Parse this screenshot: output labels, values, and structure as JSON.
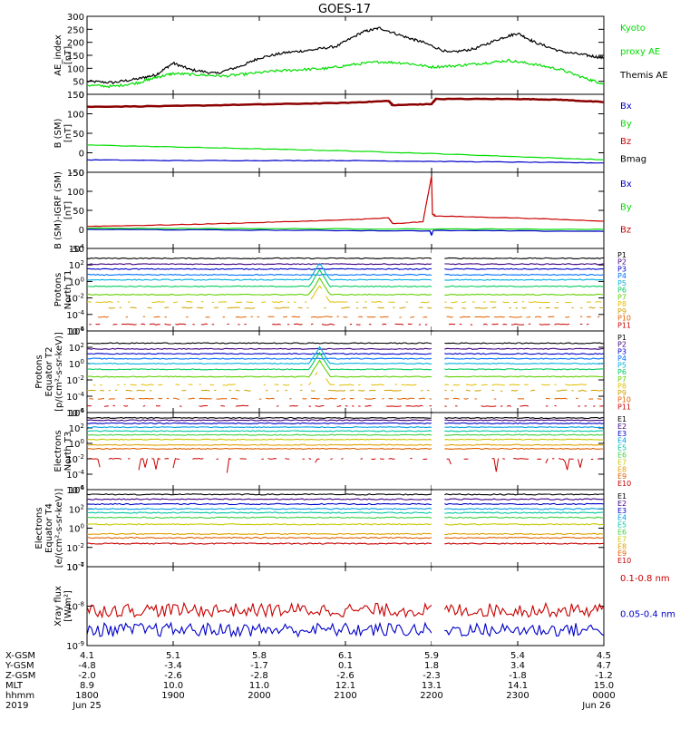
{
  "title": "GOES-17",
  "x_ticks": [
    "1800",
    "1900",
    "2000",
    "2100",
    "2200",
    "2300",
    "0000"
  ],
  "footer": {
    "rows": [
      {
        "label": "X-GSM",
        "values": [
          "4.1",
          "5.1",
          "5.8",
          "6.1",
          "5.9",
          "5.4",
          "4.5"
        ]
      },
      {
        "label": "Y-GSM",
        "values": [
          "-4.8",
          "-3.4",
          "-1.7",
          "0.1",
          "1.8",
          "3.4",
          "4.7"
        ]
      },
      {
        "label": "Z-GSM",
        "values": [
          "-2.0",
          "-2.6",
          "-2.8",
          "-2.6",
          "-2.3",
          "-1.8",
          "-1.2"
        ]
      },
      {
        "label": "MLT",
        "values": [
          "8.9",
          "10.0",
          "11.0",
          "12.1",
          "13.1",
          "14.1",
          "15.0"
        ]
      },
      {
        "label": "hhmm",
        "values": [
          "1800",
          "1900",
          "2000",
          "2100",
          "2200",
          "2300",
          "0000"
        ]
      }
    ],
    "year": "2019",
    "date_start": "Jun 25",
    "date_end": "Jun 26"
  },
  "colors": {
    "black": "#000000",
    "green": "#00dd00",
    "blue": "#0000c8",
    "red": "#c80000",
    "darkred": "#8b0000"
  },
  "chart_data": [
    {
      "type": "line",
      "ylabel": [
        "AE_index",
        "[nT]"
      ],
      "ylim": [
        0,
        300
      ],
      "yscale": "linear",
      "yticks": [
        "0",
        "50",
        "100",
        "150",
        "200",
        "250",
        "300"
      ],
      "legend": [
        {
          "label": "Kyoto",
          "color": "#00dd00"
        },
        {
          "label": "proxy AE",
          "color": "#00dd00"
        },
        {
          "label": "Themis AE",
          "color": "#000000"
        }
      ],
      "series": [
        {
          "color": "#000000",
          "x": [
            18.0,
            18.3,
            18.6,
            18.8,
            19.0,
            19.2,
            19.5,
            19.8,
            20.0,
            20.3,
            20.6,
            20.9,
            21.2,
            21.4,
            21.7,
            21.9,
            22.2,
            22.5,
            22.8,
            23.0,
            23.2,
            23.5,
            23.8,
            24.0
          ],
          "y": [
            50,
            45,
            60,
            75,
            120,
            95,
            80,
            110,
            140,
            160,
            170,
            185,
            240,
            255,
            220,
            200,
            160,
            175,
            215,
            235,
            200,
            165,
            150,
            140
          ]
        },
        {
          "color": "#00dd00",
          "x": [
            18.0,
            18.3,
            18.6,
            18.8,
            19.0,
            19.3,
            19.6,
            19.9,
            20.2,
            20.5,
            20.8,
            21.1,
            21.4,
            21.7,
            22.0,
            22.3,
            22.6,
            22.9,
            23.2,
            23.5,
            23.8,
            24.0
          ],
          "y": [
            35,
            30,
            45,
            65,
            80,
            75,
            70,
            80,
            90,
            95,
            100,
            115,
            125,
            120,
            105,
            110,
            120,
            130,
            115,
            95,
            60,
            40
          ]
        }
      ]
    },
    {
      "type": "line",
      "ylabel": [
        "B (SM)",
        "[nT]"
      ],
      "ylim": [
        -50,
        150
      ],
      "yscale": "linear",
      "yticks": [
        "-50",
        "0",
        "50",
        "100",
        "150"
      ],
      "legend": [
        {
          "label": "Bx",
          "color": "#0000c8"
        },
        {
          "label": "By",
          "color": "#00dd00"
        },
        {
          "label": "Bz",
          "color": "#c80000"
        },
        {
          "label": "Bmag",
          "color": "#000000"
        }
      ],
      "series": [
        {
          "color": "#8b0000",
          "x": [
            18.0,
            19.0,
            20.0,
            21.0,
            21.5,
            21.55,
            22.0,
            22.05,
            23.0,
            23.5,
            24.0
          ],
          "y": [
            118,
            120,
            124,
            128,
            133,
            122,
            125,
            138,
            138,
            136,
            130
          ]
        },
        {
          "color": "#00dd00",
          "x": [
            18.0,
            19.0,
            20.0,
            21.0,
            22.0,
            23.0,
            24.0
          ],
          "y": [
            20,
            15,
            10,
            5,
            -2,
            -10,
            -18
          ]
        },
        {
          "color": "#0000c8",
          "x": [
            18.0,
            19.0,
            20.0,
            21.0,
            22.0,
            23.0,
            24.0
          ],
          "y": [
            -18,
            -20,
            -20,
            -20,
            -22,
            -24,
            -26
          ]
        }
      ]
    },
    {
      "type": "line",
      "ylabel": [
        "B (SM)-IGRF (SM)",
        "[nT]"
      ],
      "ylim": [
        -50,
        150
      ],
      "yscale": "linear",
      "yticks": [
        "-50",
        "0",
        "50",
        "100",
        "150"
      ],
      "legend": [
        {
          "label": "Bx",
          "color": "#0000c8"
        },
        {
          "label": "By",
          "color": "#00dd00"
        },
        {
          "label": "Bz",
          "color": "#c80000"
        }
      ],
      "series": [
        {
          "color": "#c80000",
          "x": [
            18.0,
            19.0,
            20.0,
            21.0,
            21.5,
            21.55,
            21.9,
            22.0,
            22.01,
            22.05,
            23.0,
            24.0
          ],
          "y": [
            8,
            12,
            18,
            25,
            30,
            15,
            20,
            140,
            40,
            35,
            30,
            22
          ]
        },
        {
          "color": "#00dd00",
          "x": [
            18.0,
            20.0,
            22.0,
            24.0
          ],
          "y": [
            3,
            2,
            1,
            0
          ]
        },
        {
          "color": "#0000c8",
          "x": [
            18.0,
            20.0,
            21.98,
            22.0,
            22.02,
            24.0
          ],
          "y": [
            0,
            -2,
            -4,
            -15,
            -3,
            -5
          ]
        }
      ]
    },
    {
      "type": "line",
      "ylabel": [
        "Protons",
        "North T1"
      ],
      "ylim": [
        -6,
        4
      ],
      "yscale": "log",
      "yticks": [
        "10^-6",
        "10^-4",
        "10^-2",
        "10^0",
        "10^2",
        "10^4"
      ],
      "gap": [
        22.0,
        22.15
      ],
      "legend": [
        "P1",
        "P2",
        "P3",
        "P4",
        "P5",
        "P6",
        "P7",
        "P8",
        "P9",
        "P10",
        "P11"
      ],
      "channels": [
        {
          "label": "P1",
          "color": "#000000",
          "level": 2.8
        },
        {
          "label": "P2",
          "color": "#400080",
          "level": 2.1
        },
        {
          "label": "P3",
          "color": "#0000c8",
          "level": 1.5
        },
        {
          "label": "P4",
          "color": "#0070ff",
          "level": 0.8
        },
        {
          "label": "P5",
          "color": "#00b0e0",
          "level": 0.2
        },
        {
          "label": "P6",
          "color": "#00cc60",
          "level": -0.6
        },
        {
          "label": "P7",
          "color": "#60d000",
          "level": -1.6
        },
        {
          "label": "P8",
          "color": "#e0c000",
          "level": -2.5
        },
        {
          "label": "P9",
          "color": "#d0a000",
          "level": -3.2
        },
        {
          "label": "P10",
          "color": "#e06000",
          "level": -4.3
        },
        {
          "label": "P11",
          "color": "#c80000",
          "level": -5.2
        }
      ]
    },
    {
      "type": "line",
      "ylabel": [
        "Protons",
        "Equator T2",
        "[p/(cm²-s-sr-keV)]"
      ],
      "ylim": [
        -6,
        4
      ],
      "yscale": "log",
      "yticks": [
        "10^-6",
        "10^-4",
        "10^-2",
        "10^0",
        "10^2",
        "10^4"
      ],
      "gap": [
        22.0,
        22.15
      ],
      "legend": [
        "P1",
        "P2",
        "P3",
        "P4",
        "P5",
        "P6",
        "P7",
        "P8",
        "P9",
        "P10",
        "P11"
      ],
      "channels": [
        {
          "label": "P1",
          "color": "#000000",
          "level": 2.5
        },
        {
          "label": "P2",
          "color": "#400080",
          "level": 1.8
        },
        {
          "label": "P3",
          "color": "#0000c8",
          "level": 1.2
        },
        {
          "label": "P4",
          "color": "#0070ff",
          "level": 0.6
        },
        {
          "label": "P5",
          "color": "#00b0e0",
          "level": 0.0
        },
        {
          "label": "P6",
          "color": "#00cc60",
          "level": -0.7
        },
        {
          "label": "P7",
          "color": "#60d000",
          "level": -1.6
        },
        {
          "label": "P8",
          "color": "#e0c000",
          "level": -2.6
        },
        {
          "label": "P9",
          "color": "#d0a000",
          "level": -3.3
        },
        {
          "label": "P10",
          "color": "#e06000",
          "level": -4.3
        },
        {
          "label": "P11",
          "color": "#c80000",
          "level": -5.2
        }
      ]
    },
    {
      "type": "line",
      "ylabel": [
        "Electrons",
        "North T3"
      ],
      "ylim": [
        -6,
        4
      ],
      "yscale": "log",
      "yticks": [
        "10^-6",
        "10^-4",
        "10^-2",
        "10^0",
        "10^2",
        "10^4"
      ],
      "gap": [
        22.0,
        22.15
      ],
      "legend": [
        "E1",
        "E2",
        "E3",
        "E4",
        "E5",
        "E6",
        "E7",
        "E8",
        "E9",
        "E10"
      ],
      "channels": [
        {
          "label": "E1",
          "color": "#000000",
          "level": 3.3
        },
        {
          "label": "E2",
          "color": "#400080",
          "level": 3.0
        },
        {
          "label": "E3",
          "color": "#0000c8",
          "level": 2.6
        },
        {
          "label": "E4",
          "color": "#00a0e0",
          "level": 2.1
        },
        {
          "label": "E5",
          "color": "#00c8a0",
          "level": 1.6
        },
        {
          "label": "E6",
          "color": "#40d040",
          "level": 1.1
        },
        {
          "label": "E7",
          "color": "#c8c800",
          "level": 0.5
        },
        {
          "label": "E8",
          "color": "#e0a000",
          "level": -0.2
        },
        {
          "label": "E9",
          "color": "#e06000",
          "level": -0.7
        },
        {
          "label": "E10",
          "color": "#c80000",
          "level": -2.0
        }
      ]
    },
    {
      "type": "line",
      "ylabel": [
        "Electrons",
        "Equator T4",
        "[e/(cm²-s-sr-keV)]"
      ],
      "ylim": [
        -4,
        4
      ],
      "yscale": "log",
      "yticks": [
        "10^-4",
        "10^-2",
        "10^0",
        "10^2",
        "10^4"
      ],
      "gap": [
        22.0,
        22.15
      ],
      "legend": [
        "E1",
        "E2",
        "E3",
        "E4",
        "E5",
        "E6",
        "E7",
        "E8",
        "E9",
        "E10"
      ],
      "channels": [
        {
          "label": "E1",
          "color": "#000000",
          "level": 3.5
        },
        {
          "label": "E2",
          "color": "#400080",
          "level": 3.0
        },
        {
          "label": "E3",
          "color": "#0000c8",
          "level": 2.5
        },
        {
          "label": "E4",
          "color": "#00a0e0",
          "level": 2.0
        },
        {
          "label": "E5",
          "color": "#00c8a0",
          "level": 1.6
        },
        {
          "label": "E6",
          "color": "#40d040",
          "level": 1.1
        },
        {
          "label": "E7",
          "color": "#c8c800",
          "level": 0.4
        },
        {
          "label": "E8",
          "color": "#e0a000",
          "level": -0.6
        },
        {
          "label": "E9",
          "color": "#e06000",
          "level": -1.0
        },
        {
          "label": "E10",
          "color": "#c80000",
          "level": -1.6
        }
      ]
    },
    {
      "type": "line",
      "ylabel": [
        "Xray flux",
        "[W/m²]"
      ],
      "ylim": [
        -9,
        -7
      ],
      "yscale": "log",
      "yticks": [
        "10^-9",
        "10^-8",
        "10^-7"
      ],
      "gap": [
        22.0,
        22.15
      ],
      "legend": [
        {
          "label": "0.1-0.8 nm",
          "color": "#c80000"
        },
        {
          "label": "0.05-0.4 nm",
          "color": "#0000c8"
        }
      ],
      "channels": [
        {
          "label": "0.1-0.8 nm",
          "color": "#c80000",
          "level": -8.1
        },
        {
          "label": "0.05-0.4 nm",
          "color": "#0000c8",
          "level": -8.6
        }
      ]
    }
  ]
}
